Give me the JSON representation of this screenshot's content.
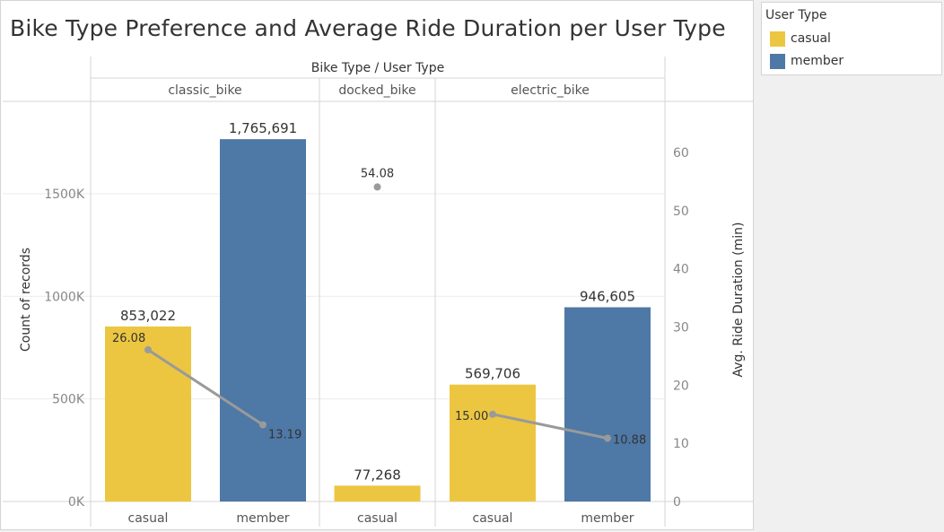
{
  "chart_title": "Bike Type Preference and Average Ride Duration per User Type",
  "legend": {
    "title": "User Type",
    "items": [
      {
        "label": "casual",
        "color": "#ecc641"
      },
      {
        "label": "member",
        "color": "#4e78a6"
      }
    ]
  },
  "chart_data": {
    "type": "bar",
    "title": "Bike Type Preference and Average Ride Duration per User Type",
    "column_header": "Bike Type / User Type",
    "groups": [
      "classic_bike",
      "docked_bike",
      "electric_bike"
    ],
    "bars": [
      {
        "group": "classic_bike",
        "user_type": "casual",
        "count": 853022,
        "count_label": "853,022",
        "avg_duration": 26.08,
        "duration_label": "26.08"
      },
      {
        "group": "classic_bike",
        "user_type": "member",
        "count": 1765691,
        "count_label": "1,765,691",
        "avg_duration": 13.19,
        "duration_label": "13.19"
      },
      {
        "group": "docked_bike",
        "user_type": "casual",
        "count": 77268,
        "count_label": "77,268",
        "avg_duration": 54.08,
        "duration_label": "54.08"
      },
      {
        "group": "electric_bike",
        "user_type": "casual",
        "count": 569706,
        "count_label": "569,706",
        "avg_duration": 15.0,
        "duration_label": "15.00"
      },
      {
        "group": "electric_bike",
        "user_type": "member",
        "count": 946605,
        "count_label": "946,605",
        "avg_duration": 10.88,
        "duration_label": "10.88"
      }
    ],
    "y_left": {
      "label": "Count of records",
      "ticks": [
        0,
        500000,
        1000000,
        1500000
      ],
      "tick_labels": [
        "0K",
        "500K",
        "1000K",
        "1500K"
      ],
      "range": [
        0,
        1950000
      ]
    },
    "y_right": {
      "label": "Avg. Ride Duration (min)",
      "ticks": [
        0,
        10,
        20,
        30,
        40,
        50,
        60
      ],
      "tick_labels": [
        "0",
        "10",
        "20",
        "30",
        "40",
        "50",
        "60"
      ],
      "range": [
        0,
        68.8
      ]
    },
    "colors": {
      "casual": "#ecc641",
      "member": "#4e78a6",
      "line": "#9a9a9a",
      "grid": "#ececec"
    },
    "grid": true,
    "legend_position": "right"
  }
}
